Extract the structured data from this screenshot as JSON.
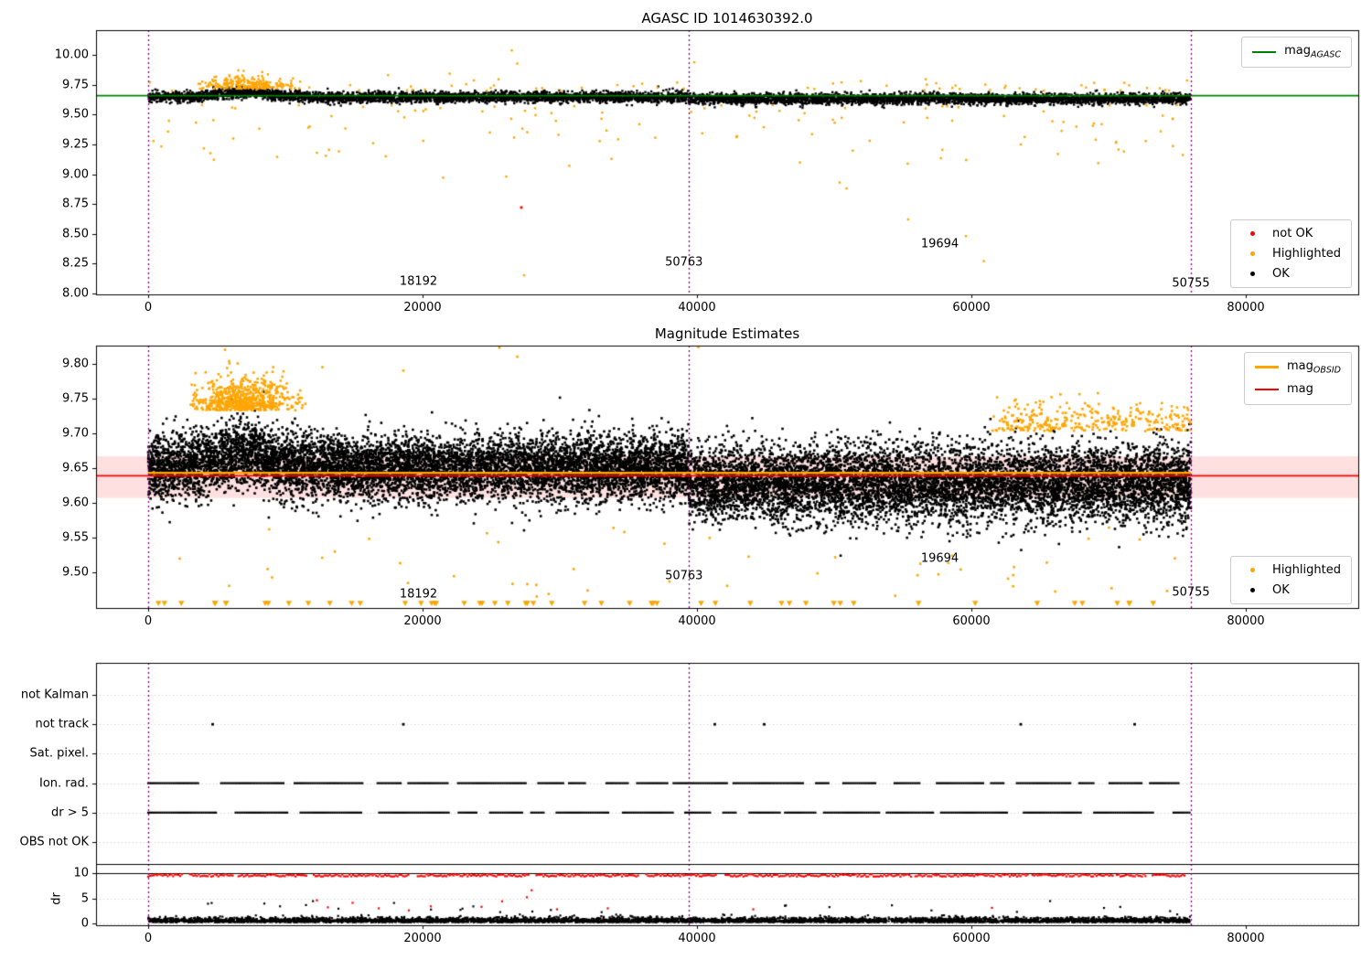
{
  "figure": {
    "background": "#ffffff",
    "colors": {
      "ok": "#000000",
      "highlighted": "#ffa500",
      "not_ok": "#ff0000",
      "mag_agasc": "#008000",
      "mag_obsid": "#ffa500",
      "mag": "#ff0000",
      "mag_band": "rgba(255,0,0,0.12)",
      "obsid_boundary": "#800080",
      "grid": "#c8c8c8",
      "spine": "#000000"
    }
  },
  "chart_data": [
    {
      "type": "scatter",
      "title": "AGASC ID 1014630392.0",
      "xlim": [
        -3800,
        88200
      ],
      "ylim": [
        7.99,
        10.21
      ],
      "xticks": [
        {
          "v": 0,
          "label": "0"
        },
        {
          "v": 20000,
          "label": "20000"
        },
        {
          "v": 40000,
          "label": "40000"
        },
        {
          "v": 60000,
          "label": "60000"
        },
        {
          "v": 80000,
          "label": "80000"
        }
      ],
      "yticks": [
        {
          "v": 10.0,
          "label": "10.00"
        },
        {
          "v": 9.75,
          "label": "9.75"
        },
        {
          "v": 9.5,
          "label": "9.50"
        },
        {
          "v": 9.25,
          "label": "9.25"
        },
        {
          "v": 9.0,
          "label": "9.00"
        },
        {
          "v": 8.75,
          "label": "8.75"
        },
        {
          "v": 8.5,
          "label": "8.50"
        },
        {
          "v": 8.25,
          "label": "8.25"
        },
        {
          "v": 8.0,
          "label": "8.00"
        }
      ],
      "hline": {
        "name": "mag_AGASC",
        "value": 9.66,
        "color": "#008000"
      },
      "obsid_boundaries": [
        0,
        39400,
        76000
      ],
      "annotations": [
        {
          "text": "18192",
          "x": 19700,
          "y": 8.1
        },
        {
          "text": "50763",
          "x": 39050,
          "y": 8.26
        },
        {
          "text": "19694",
          "x": 57700,
          "y": 8.41
        },
        {
          "text": "50755",
          "x": 76000,
          "y": 8.08
        }
      ],
      "legend_lines": [
        {
          "prefix": "mag",
          "sub": "AGASC",
          "color": "#008000"
        }
      ],
      "legend_points": [
        {
          "label": "not OK",
          "color": "#ff0000"
        },
        {
          "label": "Highlighted",
          "color": "#ffa500"
        },
        {
          "label": "OK",
          "color": "#000000"
        }
      ],
      "series": {
        "ok_band": {
          "color": "#000000",
          "n": 7000,
          "x_range": [
            0,
            76000
          ],
          "mean_first": 9.648,
          "mean_second": 9.633,
          "break_x": 39400,
          "sd": 0.022,
          "bump_center": 7000,
          "bump_width": 2600,
          "bump_amp": 0.038
        },
        "highlighted_cap": {
          "color": "#ffa500",
          "n": 240,
          "x_center": 7200,
          "x_sd": 1700,
          "x_min": 3600,
          "x_max": 11200,
          "y_base": 9.718,
          "y_spread": 0.05
        },
        "highlighted_top": {
          "color": "#ffa500",
          "n": 70,
          "x_range": [
            0,
            76000
          ],
          "y_base": 9.7,
          "y_spread": 0.045
        },
        "highlighted_low": {
          "color": "#ffa500",
          "n": 110,
          "x_range": [
            300,
            75700
          ],
          "y_top": 9.58,
          "y_depth": 0.5
        },
        "highlighted_outliers": [
          [
            26500,
            10.04
          ],
          [
            26900,
            9.93
          ],
          [
            39800,
            9.94
          ],
          [
            21500,
            8.97
          ],
          [
            26100,
            8.98
          ],
          [
            27400,
            8.15
          ],
          [
            30700,
            9.07
          ],
          [
            35800,
            9.42
          ],
          [
            50400,
            8.93
          ],
          [
            50900,
            8.88
          ],
          [
            55400,
            8.62
          ],
          [
            59600,
            8.48
          ],
          [
            60900,
            8.27
          ],
          [
            6200,
            9.3
          ],
          [
            12300,
            9.18
          ],
          [
            16400,
            9.26
          ],
          [
            24900,
            9.35
          ],
          [
            63600,
            9.25
          ],
          [
            69500,
            9.42
          ],
          [
            73800,
            9.36
          ]
        ],
        "not_ok_points": [
          [
            27200,
            8.72
          ]
        ]
      }
    },
    {
      "type": "scatter",
      "title": "Magnitude Estimates",
      "xlim": [
        -3800,
        88200
      ],
      "ylim": [
        9.449,
        9.826
      ],
      "xticks": [
        {
          "v": 0,
          "label": "0"
        },
        {
          "v": 20000,
          "label": "20000"
        },
        {
          "v": 40000,
          "label": "40000"
        },
        {
          "v": 60000,
          "label": "60000"
        },
        {
          "v": 80000,
          "label": "80000"
        }
      ],
      "yticks": [
        {
          "v": 9.8,
          "label": "9.80"
        },
        {
          "v": 9.75,
          "label": "9.75"
        },
        {
          "v": 9.7,
          "label": "9.70"
        },
        {
          "v": 9.65,
          "label": "9.65"
        },
        {
          "v": 9.6,
          "label": "9.60"
        },
        {
          "v": 9.55,
          "label": "9.55"
        },
        {
          "v": 9.5,
          "label": "9.50"
        }
      ],
      "hlines": [
        {
          "name": "mag_OBSID",
          "value": 9.643,
          "color": "#ffa500",
          "width": 2.4,
          "span": "data"
        },
        {
          "name": "mag",
          "value": 9.639,
          "color": "#ff0000",
          "width": 1.6,
          "span": "full"
        }
      ],
      "band": {
        "y0": 9.607,
        "y1": 9.667,
        "color": "rgba(255,0,0,0.12)"
      },
      "obsid_boundaries": [
        0,
        39400,
        76000
      ],
      "annotations": [
        {
          "text": "18192",
          "x": 19700,
          "y": 9.469
        },
        {
          "text": "50763",
          "x": 39050,
          "y": 9.495
        },
        {
          "text": "19694",
          "x": 57700,
          "y": 9.52
        },
        {
          "text": "50755",
          "x": 76000,
          "y": 9.471
        }
      ],
      "legend_lines": [
        {
          "prefix": "mag",
          "sub": "OBSID",
          "color": "#ffa500"
        },
        {
          "prefix": "mag",
          "sub": "",
          "color": "#ff0000"
        }
      ],
      "legend_points": [
        {
          "label": "Highlighted",
          "color": "#ffa500"
        },
        {
          "label": "OK",
          "color": "#000000"
        }
      ],
      "series": {
        "ok_band": {
          "color": "#000000",
          "n": 16000,
          "x_range": [
            0,
            76000
          ],
          "mean_first": 9.651,
          "mean_second": 9.628,
          "break_x": 39400,
          "sd_first": 0.023,
          "sd_second": 0.027,
          "bump_center": 7000,
          "bump_width": 2800,
          "bump_amp": 0.02
        },
        "highlighted_cap": {
          "color": "#ffa500",
          "n": 650,
          "x_center": 7000,
          "x_sd": 1800,
          "x_min": 3000,
          "x_max": 11500,
          "y_base": 9.733,
          "y_spread": 0.022
        },
        "highlighted_right": {
          "color": "#ffa500",
          "n": 330,
          "x_range": [
            61500,
            76000
          ],
          "y_base": 9.703,
          "y_spread": 0.02
        },
        "highlighted_low": {
          "color": "#ffa500",
          "n": 45,
          "x_range": [
            300,
            75700
          ],
          "y_range": [
            9.455,
            9.565
          ]
        },
        "highlighted_outliers": [
          [
            5600,
            9.82
          ],
          [
            12700,
            9.795
          ],
          [
            18600,
            9.79
          ],
          [
            25600,
            9.823
          ],
          [
            26900,
            9.81
          ],
          [
            40100,
            9.824
          ],
          [
            2300,
            9.52
          ],
          [
            8700,
            9.505
          ],
          [
            13600,
            9.53
          ]
        ],
        "clip_markers": {
          "color": "#ffa500",
          "n": 52,
          "x_range": [
            500,
            75600
          ]
        }
      }
    },
    {
      "type": "flags",
      "title": "",
      "rows": [
        "not Kalman",
        "not track",
        "Sat. pixel.",
        "Ion. rad.",
        "dr > 5",
        "OBS not OK"
      ],
      "xticks": [
        {
          "v": 0,
          "label": "0"
        },
        {
          "v": 20000,
          "label": "20000"
        },
        {
          "v": 40000,
          "label": "40000"
        },
        {
          "v": 60000,
          "label": "60000"
        },
        {
          "v": 80000,
          "label": "80000"
        }
      ],
      "obsid_boundaries": [
        0,
        39400,
        76000
      ],
      "flag_series": {
        "not_track_x": [
          4700,
          18600,
          41300,
          44900,
          63600,
          71900
        ],
        "ion_rad": {
          "style": "dense-dashes",
          "x_range": [
            0,
            76000
          ]
        },
        "dr_gt_5": {
          "style": "dense-dashes",
          "x_range": [
            0,
            76000
          ]
        }
      },
      "dr_panel": {
        "ylabel": "dr",
        "yticks": [
          {
            "v": 10,
            "label": "10"
          },
          {
            "v": 5,
            "label": "5"
          },
          {
            "v": 0,
            "label": "0"
          }
        ],
        "axhline": 10,
        "clipped_red_row": {
          "color": "#ff0000",
          "value": 10,
          "x_range": [
            0,
            76000
          ]
        },
        "dr_band": {
          "color": "#000000",
          "n": 5000,
          "x_range": [
            0,
            76000
          ],
          "base": 0.25,
          "spread": 0.45,
          "max": 2.4
        },
        "black_outliers": {
          "n": 26,
          "dr_range": [
            2.2,
            4.6
          ]
        },
        "red_outliers": [
          [
            12300,
            4.6
          ],
          [
            13100,
            3.2
          ],
          [
            14900,
            4.1
          ],
          [
            16800,
            3.0
          ],
          [
            19000,
            2.6
          ],
          [
            20600,
            3.4
          ],
          [
            24300,
            3.3
          ],
          [
            25800,
            4.4
          ],
          [
            27600,
            5.2
          ],
          [
            27950,
            6.6
          ],
          [
            29800,
            2.8
          ],
          [
            33500,
            3.0
          ],
          [
            44100,
            2.8
          ],
          [
            61500,
            3.1
          ]
        ]
      }
    }
  ]
}
